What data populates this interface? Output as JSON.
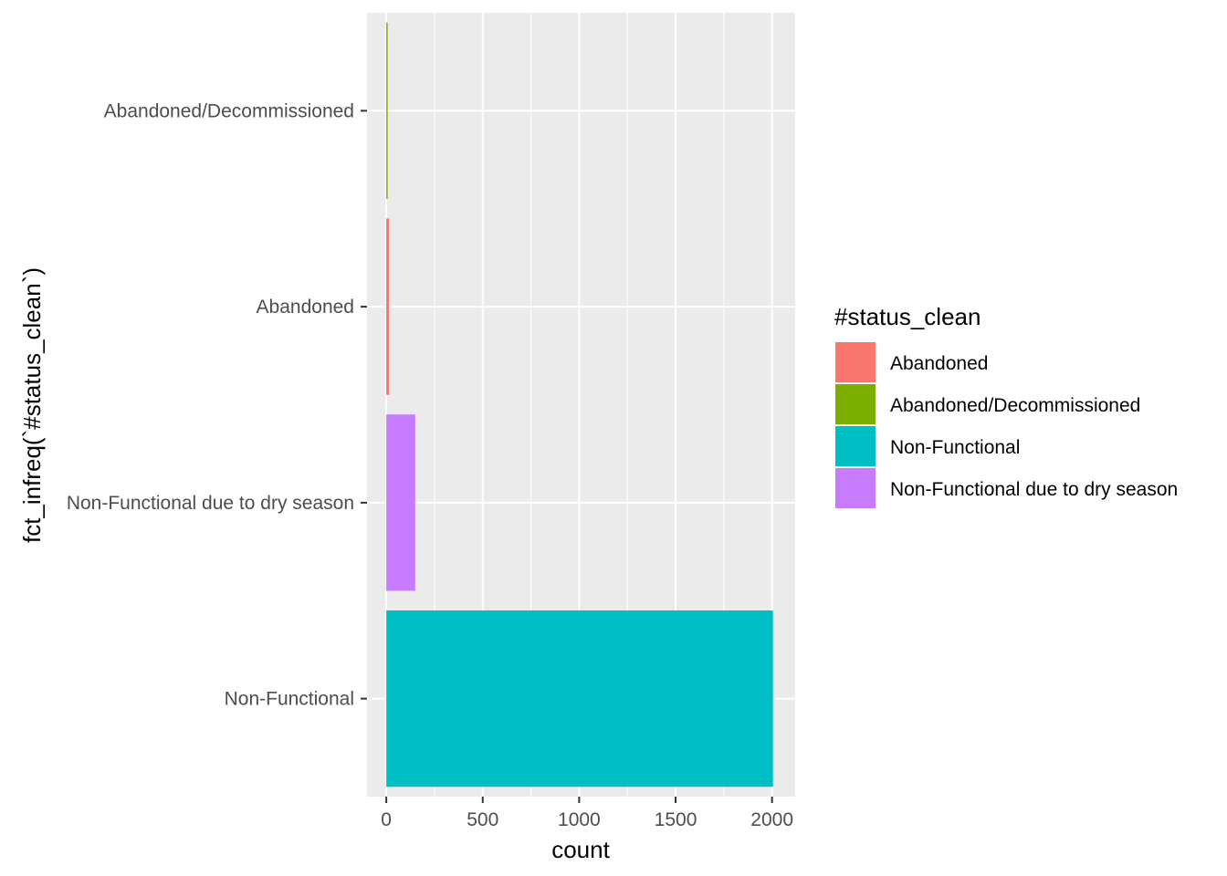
{
  "chart_data": {
    "type": "bar",
    "orientation": "horizontal",
    "categories": [
      "Non-Functional",
      "Non-Functional due to dry season",
      "Abandoned",
      "Abandoned/Decommissioned"
    ],
    "values": [
      2005,
      150,
      15,
      5
    ],
    "bar_colors": [
      "#00BFC4",
      "#C77CFF",
      "#F8766D",
      "#7CAE00"
    ],
    "xlabel": "count",
    "ylabel": "fct_infreq(`#status_clean`)",
    "xlim": [
      -100,
      2120
    ],
    "x_ticks": [
      0,
      500,
      1000,
      1500,
      2000
    ],
    "grid": true,
    "panel_background": "#EBEBEB",
    "legend": {
      "title": "#status_clean",
      "placement": "right",
      "entries": [
        {
          "label": "Abandoned",
          "color": "#F8766D"
        },
        {
          "label": "Abandoned/Decommissioned",
          "color": "#7CAE00"
        },
        {
          "label": "Non-Functional",
          "color": "#00BFC4"
        },
        {
          "label": "Non-Functional due to dry season",
          "color": "#C77CFF"
        }
      ]
    }
  }
}
